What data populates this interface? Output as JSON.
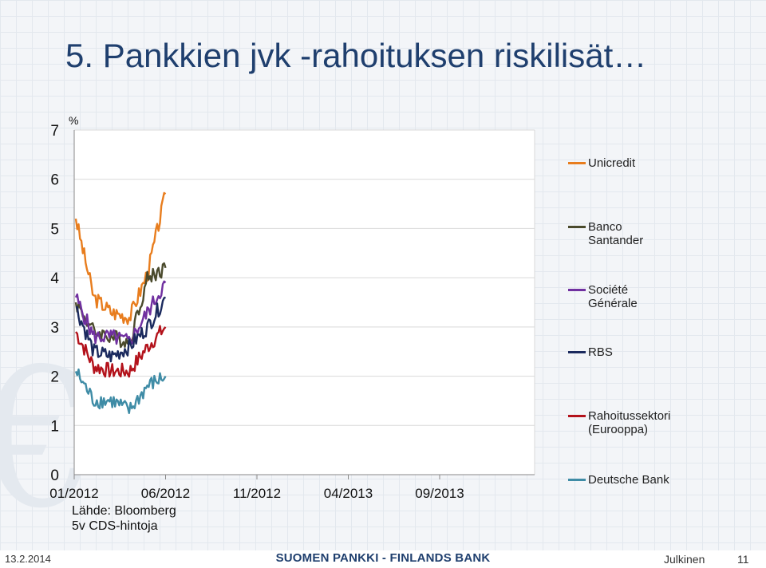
{
  "slide": {
    "title": "5. Pankkien jvk -rahoituksen riskilisät…",
    "source": "Lähde: Bloomberg\n5v CDS-hintoja"
  },
  "footer": {
    "date": "13.2.2014",
    "organization": "SUOMEN PANKKI - FINLANDS BANK",
    "classification": "Julkinen",
    "page": "11"
  },
  "chart_data": {
    "type": "line",
    "title": "",
    "ylabel": "%",
    "xlabel": "",
    "ylim": [
      0,
      7
    ],
    "yticks": [
      "0",
      "1",
      "2",
      "3",
      "4",
      "5",
      "6",
      "7"
    ],
    "xticks": [
      "01/2012",
      "06/2012",
      "11/2012",
      "04/2013",
      "09/2013"
    ],
    "x": [
      "01/2012",
      "02/2012",
      "03/2012",
      "04/2012",
      "05/2012",
      "06/2012"
    ],
    "grid": true,
    "legend_position": "right",
    "series": [
      {
        "name": "Unicredit",
        "color": "#e87d1e",
        "values": [
          5.2,
          3.6,
          3.3,
          3.2,
          4.1,
          5.7
        ]
      },
      {
        "name": "Banco Santander",
        "color": "#4a4a2c",
        "values": [
          3.5,
          2.9,
          2.8,
          2.7,
          4.0,
          4.2
        ]
      },
      {
        "name": "Société Générale",
        "color": "#7030a0",
        "values": [
          3.6,
          2.8,
          2.8,
          2.7,
          3.3,
          3.9
        ]
      },
      {
        "name": "RBS",
        "color": "#1b2a5e",
        "values": [
          3.4,
          2.5,
          2.4,
          2.6,
          3.0,
          3.6
        ]
      },
      {
        "name": "Rahoitussektori (Eurooppa)",
        "color": "#b3121b",
        "values": [
          2.9,
          2.2,
          2.1,
          2.1,
          2.6,
          3.0
        ]
      },
      {
        "name": "Deutsche Bank",
        "color": "#3f8ca6",
        "values": [
          2.1,
          1.5,
          1.5,
          1.3,
          1.8,
          2.0
        ]
      }
    ]
  }
}
